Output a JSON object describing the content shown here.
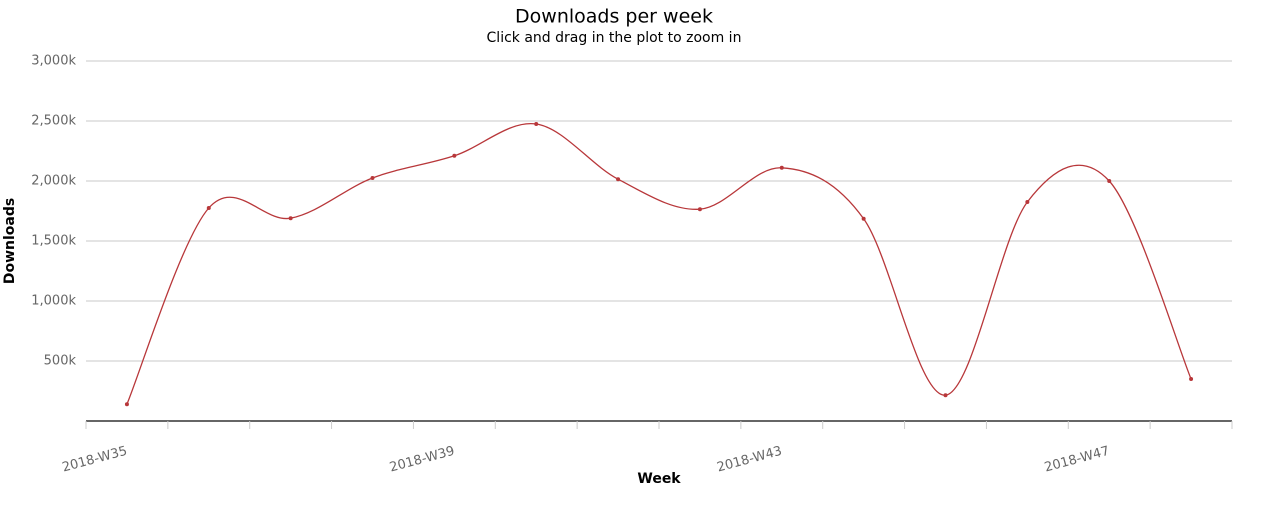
{
  "chart_data": {
    "type": "line",
    "title": "Downloads per week",
    "subtitle": "Click and drag in the plot to zoom in",
    "xlabel": "Week",
    "ylabel": "Downloads",
    "categories": [
      "2018-W35",
      null,
      null,
      null,
      "2018-W39",
      null,
      null,
      null,
      "2018-W43",
      null,
      null,
      null,
      "2018-W47",
      null
    ],
    "values": [
      140000,
      1775000,
      1690000,
      2025000,
      2210000,
      2475000,
      2015000,
      1765000,
      2110000,
      1685000,
      215000,
      1825000,
      2000000,
      350000
    ],
    "color": "#b8373a",
    "ylim": [
      0,
      3000000
    ],
    "yticks": [
      {
        "value": 500000,
        "label": "500k"
      },
      {
        "value": 1000000,
        "label": "1,000k"
      },
      {
        "value": 1500000,
        "label": "1,500k"
      },
      {
        "value": 2000000,
        "label": "2,000k"
      },
      {
        "value": 2500000,
        "label": "2,500k"
      },
      {
        "value": 3000000,
        "label": "3,000k"
      }
    ],
    "grid": true
  }
}
